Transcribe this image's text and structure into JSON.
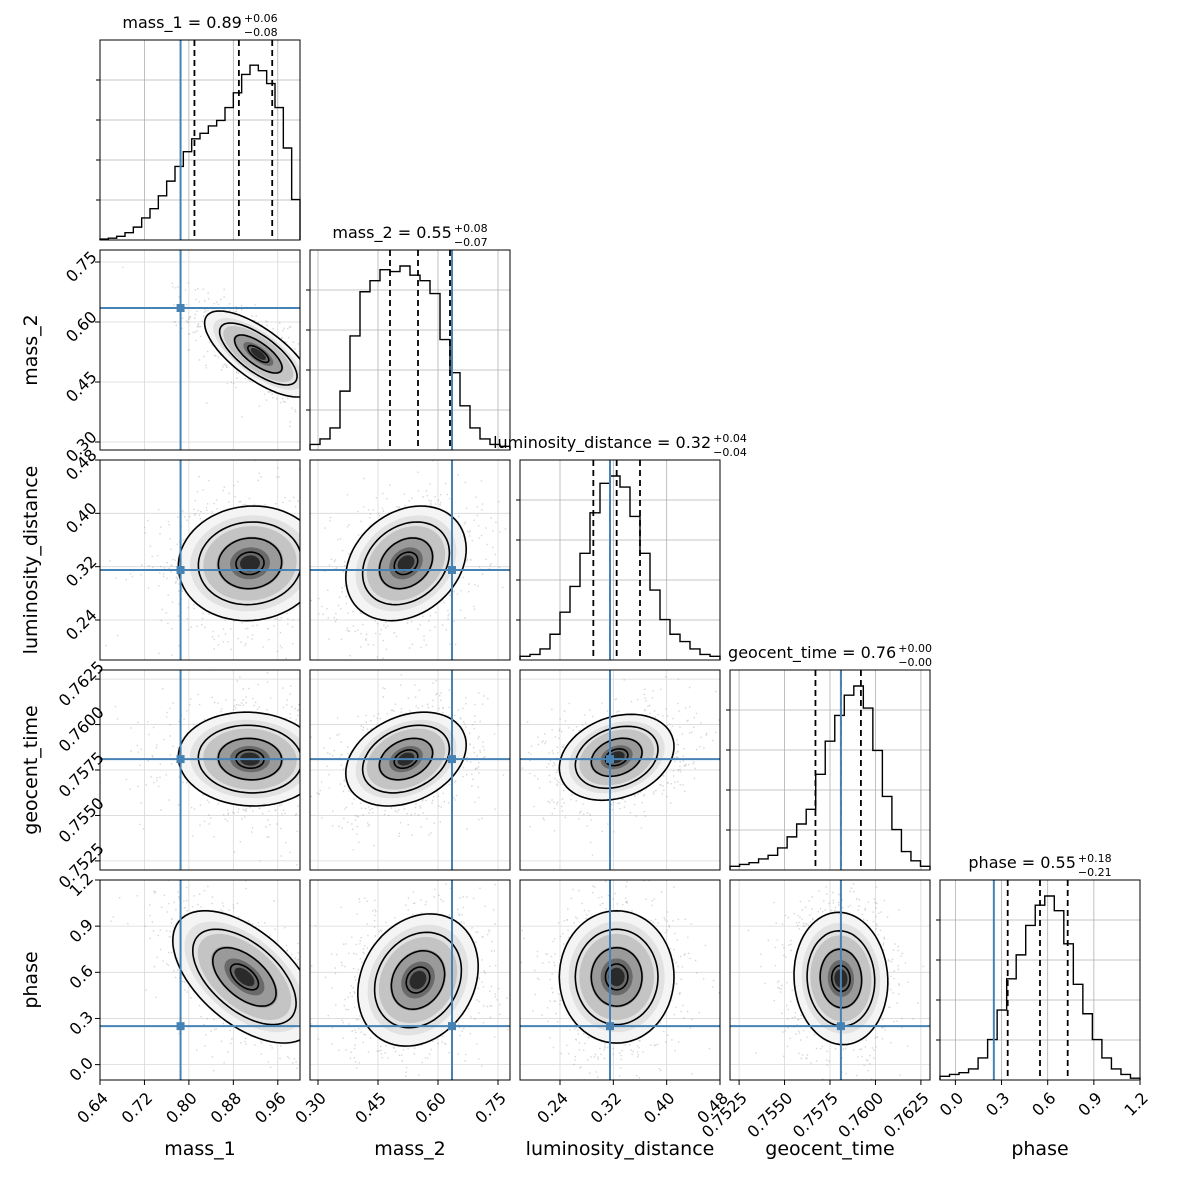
{
  "chart_data": {
    "type": "corner",
    "parameters": [
      {
        "name": "mass_1",
        "range": [
          0.64,
          1.0
        ],
        "ticks": [
          "0.64",
          "0.72",
          "0.80",
          "0.88",
          "0.96"
        ],
        "truth": 0.785,
        "title": {
          "text": "mass_1 = 0.89",
          "sup": "+0.06",
          "sub": "−0.08"
        },
        "quantiles": [
          0.81,
          0.89,
          0.95
        ]
      },
      {
        "name": "mass_2",
        "range": [
          0.28,
          0.78
        ],
        "ticks": [
          "0.30",
          "0.45",
          "0.60",
          "0.75"
        ],
        "truth": 0.635,
        "title": {
          "text": "mass_2 = 0.55",
          "sup": "+0.08",
          "sub": "−0.07"
        },
        "quantiles": [
          0.48,
          0.55,
          0.63
        ]
      },
      {
        "name": "luminosity_distance",
        "range": [
          0.18,
          0.48
        ],
        "ticks": [
          "0.24",
          "0.32",
          "0.40",
          "0.48"
        ],
        "truth": 0.315,
        "title": {
          "text": "luminosity_distance = 0.32",
          "sup": "+0.04",
          "sub": "−0.04"
        },
        "quantiles": [
          0.29,
          0.325,
          0.36
        ]
      },
      {
        "name": "geocent_time",
        "range": [
          0.752,
          0.763
        ],
        "ticks": [
          "0.7525",
          "0.7550",
          "0.7575",
          "0.7600",
          "0.7625"
        ],
        "truth": 0.7581,
        "title": {
          "text": "geocent_time = 0.76",
          "sup": "+0.00",
          "sub": "−0.00"
        },
        "quantiles": [
          0.7567,
          0.7581,
          0.7592
        ]
      },
      {
        "name": "phase",
        "range": [
          -0.1,
          1.2
        ],
        "ticks": [
          "0.0",
          "0.3",
          "0.6",
          "0.9",
          "1.2"
        ],
        "truth": 0.25,
        "title": {
          "text": "phase = 0.55",
          "sup": "+0.18",
          "sub": "−0.21"
        },
        "quantiles": [
          0.34,
          0.55,
          0.73
        ]
      }
    ],
    "histograms": [
      [
        0.005,
        0.01,
        0.02,
        0.04,
        0.07,
        0.12,
        0.17,
        0.24,
        0.32,
        0.4,
        0.48,
        0.55,
        0.58,
        0.62,
        0.65,
        0.72,
        0.8,
        0.9,
        0.95,
        0.92,
        0.85,
        0.72,
        0.5,
        0.22
      ],
      [
        0.03,
        0.06,
        0.12,
        0.32,
        0.62,
        0.86,
        0.92,
        0.98,
        0.97,
        1.0,
        0.95,
        0.92,
        0.85,
        0.6,
        0.42,
        0.24,
        0.12,
        0.06,
        0.03,
        0.02
      ],
      [
        0.02,
        0.03,
        0.06,
        0.14,
        0.26,
        0.4,
        0.58,
        0.8,
        0.96,
        1.0,
        0.94,
        0.78,
        0.58,
        0.38,
        0.22,
        0.14,
        0.1,
        0.06,
        0.03,
        0.02
      ],
      [
        0.02,
        0.03,
        0.04,
        0.06,
        0.08,
        0.12,
        0.18,
        0.25,
        0.33,
        0.52,
        0.7,
        0.84,
        0.95,
        1.0,
        0.88,
        0.65,
        0.4,
        0.22,
        0.1,
        0.05,
        0.02
      ],
      [
        0.02,
        0.03,
        0.04,
        0.06,
        0.12,
        0.22,
        0.38,
        0.55,
        0.68,
        0.84,
        0.95,
        1.0,
        0.92,
        0.74,
        0.52,
        0.36,
        0.22,
        0.12,
        0.06,
        0.03,
        0.01
      ]
    ],
    "contours_2d": [
      {
        "x": "mass_1",
        "y": "mass_2",
        "center": [
          0.925,
          0.52
        ],
        "std": [
          0.045,
          0.05
        ],
        "rho": -0.72
      },
      {
        "x": "mass_1",
        "y": "luminosity_distance",
        "center": [
          0.91,
          0.325
        ],
        "std": [
          0.06,
          0.04
        ],
        "rho": 0.05
      },
      {
        "x": "mass_2",
        "y": "luminosity_distance",
        "center": [
          0.52,
          0.325
        ],
        "std": [
          0.07,
          0.04
        ],
        "rho": 0.25
      },
      {
        "x": "mass_1",
        "y": "geocent_time",
        "center": [
          0.91,
          0.7581
        ],
        "std": [
          0.06,
          0.0012
        ],
        "rho": -0.05
      },
      {
        "x": "mass_2",
        "y": "geocent_time",
        "center": [
          0.52,
          0.7581
        ],
        "std": [
          0.07,
          0.0012
        ],
        "rho": 0.3
      },
      {
        "x": "luminosity_distance",
        "y": "geocent_time",
        "center": [
          0.325,
          0.7582
        ],
        "std": [
          0.04,
          0.0011
        ],
        "rho": 0.25
      },
      {
        "x": "mass_1",
        "y": "phase",
        "center": [
          0.9,
          0.57
        ],
        "std": [
          0.06,
          0.2
        ],
        "rho": -0.55
      },
      {
        "x": "mass_2",
        "y": "phase",
        "center": [
          0.55,
          0.55
        ],
        "std": [
          0.07,
          0.2
        ],
        "rho": 0.2
      },
      {
        "x": "luminosity_distance",
        "y": "phase",
        "center": [
          0.325,
          0.57
        ],
        "std": [
          0.04,
          0.2
        ],
        "rho": 0.0
      },
      {
        "x": "geocent_time",
        "y": "phase",
        "center": [
          0.7581,
          0.56
        ],
        "std": [
          0.0012,
          0.2
        ],
        "rho": -0.05
      }
    ],
    "grid": true,
    "colors": {
      "truth": "#4682b4",
      "hist": "#000000",
      "contour": "#000000",
      "grid": "#b0b0b0"
    }
  }
}
